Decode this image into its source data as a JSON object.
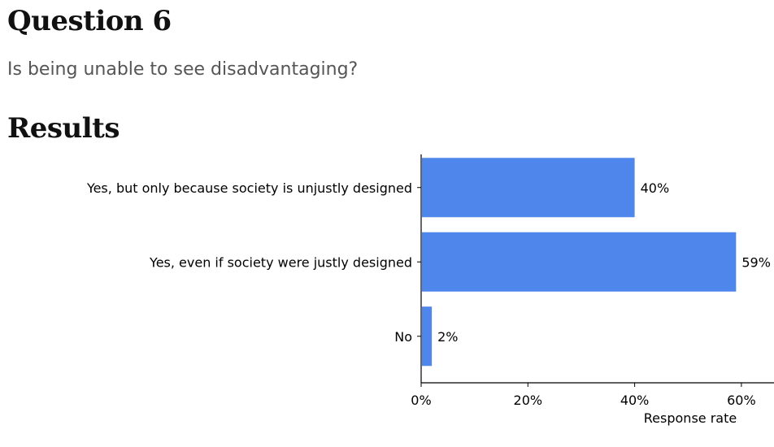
{
  "question": {
    "title": "Question 6",
    "text": "Is being unable to see disadvantaging?"
  },
  "results": {
    "title": "Results"
  },
  "chart_data": {
    "type": "bar",
    "orientation": "horizontal",
    "categories": [
      "Yes, but only because society is unjustly designed",
      "Yes, even if society were justly designed",
      "No"
    ],
    "values": [
      40,
      59,
      2
    ],
    "value_labels": [
      "40%",
      "59%",
      "2%"
    ],
    "xlabel": "Response rate",
    "ylabel": "",
    "xlim": [
      0,
      65
    ],
    "xticks": [
      0,
      20,
      40,
      60
    ],
    "xtick_labels": [
      "0%",
      "20%",
      "40%",
      "60%"
    ],
    "bar_color": "#4f86ec",
    "grid": false
  }
}
